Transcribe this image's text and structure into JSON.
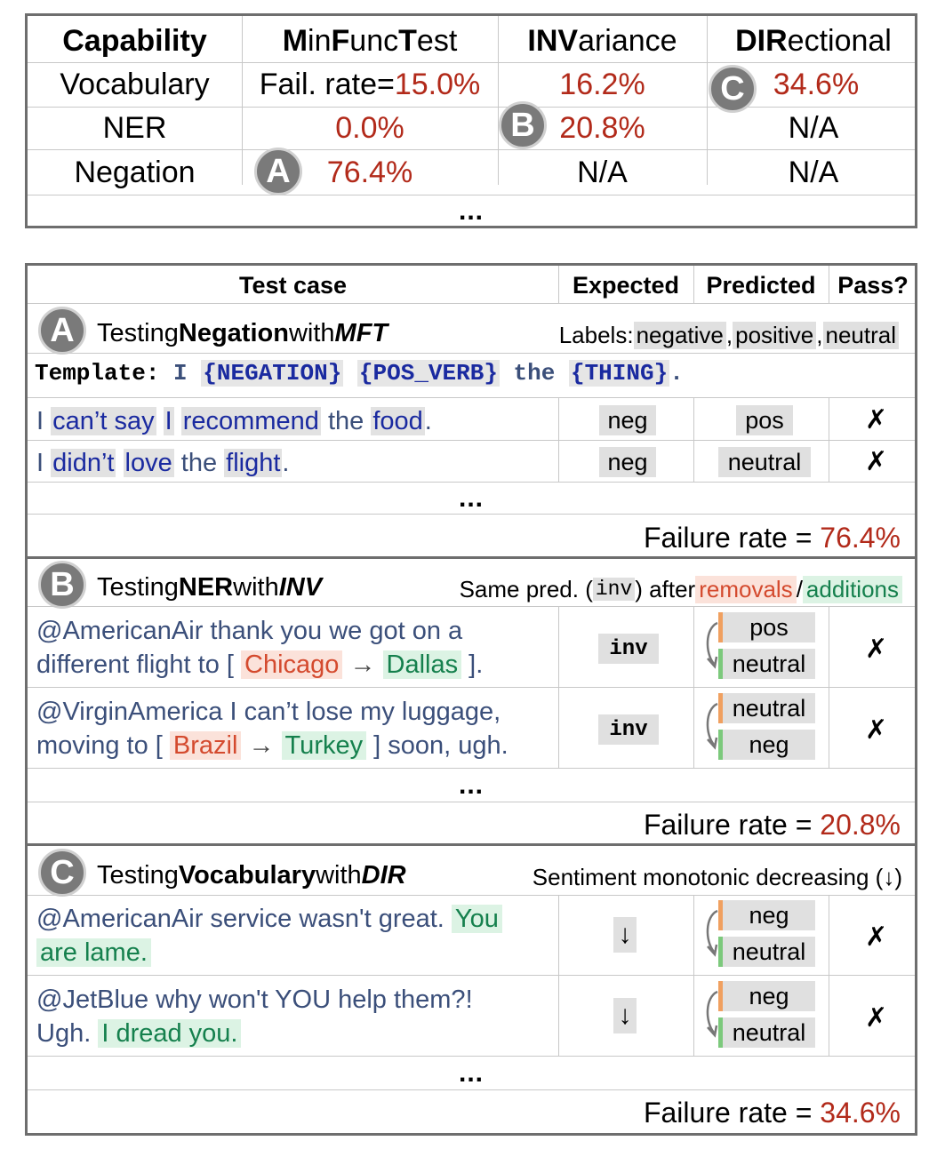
{
  "summary": {
    "headers": {
      "capability": "Capability",
      "mft": {
        "b1": "M",
        "r1": "in ",
        "b2": "F",
        "r2": "unc ",
        "b3": "T",
        "r3": "est"
      },
      "inv": {
        "b": "INV",
        "r": "ariance"
      },
      "dir": {
        "b": "DIR",
        "r": "ectional"
      }
    },
    "rows": [
      {
        "capability": "Vocabulary",
        "mft_prefix": "Fail. rate=",
        "mft": "15.0%",
        "inv": "16.2%",
        "dir": "34.6%"
      },
      {
        "capability": "NER",
        "mft_prefix": "",
        "mft": "0.0%",
        "inv": "20.8%",
        "dir": "N/A"
      },
      {
        "capability": "Negation",
        "mft_prefix": "",
        "mft": "76.4%",
        "inv": "N/A",
        "dir": "N/A"
      }
    ],
    "ellipsis": "...",
    "badges": {
      "a": "A",
      "b": "B",
      "c": "C"
    }
  },
  "detail": {
    "headers": {
      "test_case": "Test case",
      "expected": "Expected",
      "predicted": "Predicted",
      "pass": "Pass?"
    },
    "sectionA": {
      "badge": "A",
      "t1": "Testing ",
      "cap": "Negation",
      "t2": " with ",
      "type": "MFT",
      "labels_prefix": "Labels: ",
      "l1": "negative",
      "sep1": ", ",
      "l2": "positive",
      "sep2": ", ",
      "l3": "neutral",
      "template": {
        "kw": "Template:",
        "w1": "I",
        "s1": "{NEGATION}",
        "s2": "{POS_VERB}",
        "w2": "the",
        "s3": "{THING}",
        "end": "."
      },
      "cases": [
        {
          "p1": "I ",
          "h1": "can’t say",
          "p2": " ",
          "h2": "I",
          "p3": " ",
          "h3": "recommend",
          "p4": " the ",
          "h4": "food",
          "p5": ".",
          "expected": "neg",
          "predicted": "pos",
          "pass": "✗"
        },
        {
          "p1": "I ",
          "h1": "didn’t",
          "p2": " ",
          "h2": "love",
          "p3": " the ",
          "h3": "flight",
          "p4": ".",
          "expected": "neg",
          "predicted": "neutral",
          "pass": "✗"
        }
      ],
      "ellipsis": "...",
      "failure_label": "Failure rate = ",
      "failure": "76.4%"
    },
    "sectionB": {
      "badge": "B",
      "t1": "Testing ",
      "cap": "NER",
      "t2": " with ",
      "type": "INV",
      "right_prefix": "Same pred. (",
      "right_code": "inv",
      "right_mid": ") after ",
      "removals": "removals",
      "slash": " / ",
      "additions": "additions",
      "cases": [
        {
          "line1": "@AmericanAir thank you we got on a",
          "line2a": "different flight to [ ",
          "from": "Chicago",
          "arrow": " → ",
          "to": "Dallas",
          "line2b": " ].",
          "expected": "inv",
          "pred_before": "pos",
          "pred_after": "neutral",
          "pass": "✗"
        },
        {
          "line1": "@VirginAmerica I can’t lose my luggage,",
          "line2a": "moving to [ ",
          "from": "Brazil",
          "arrow": " → ",
          "to": "Turkey",
          "line2b": " ] soon, ugh.",
          "expected": "inv",
          "pred_before": "neutral",
          "pred_after": "neg",
          "pass": "✗"
        }
      ],
      "ellipsis": "...",
      "failure_label": "Failure rate = ",
      "failure": "20.8%"
    },
    "sectionC": {
      "badge": "C",
      "t1": "Testing ",
      "cap": "Vocabulary",
      "t2": " with ",
      "type": "DIR",
      "right": "Sentiment monotonic decreasing (↓)",
      "cases": [
        {
          "line1a": "@AmericanAir service wasn't great. ",
          "line1b": "You",
          "line2": "are lame.",
          "expected": "↓",
          "pred_before": "neg",
          "pred_after": "neutral",
          "pass": "✗"
        },
        {
          "line1": "@JetBlue why won't YOU help them?!",
          "line2a": "Ugh. ",
          "line2b": "I dread you.",
          "expected": "↓",
          "pred_before": "neg",
          "pred_after": "neutral",
          "pass": "✗"
        }
      ],
      "ellipsis": "...",
      "failure_label": "Failure rate = ",
      "failure": "34.6%"
    }
  }
}
